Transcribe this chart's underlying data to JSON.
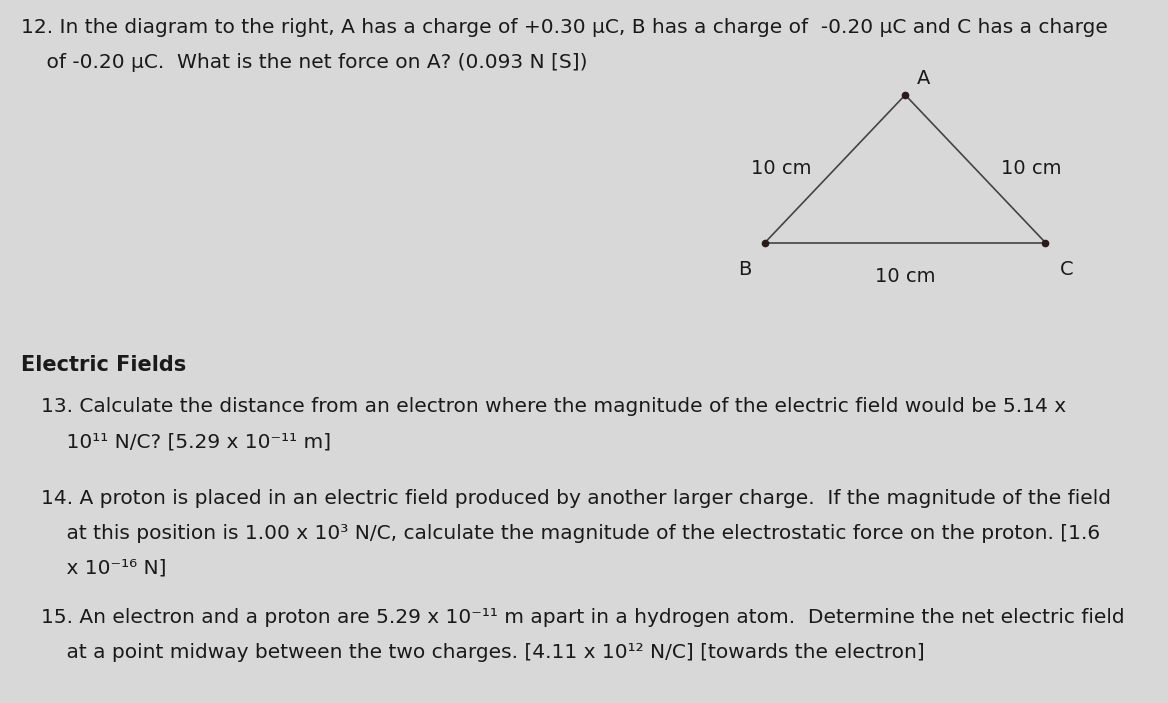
{
  "background_color": "#d8d8d8",
  "title_q12_line1": "12. In the diagram to the right, A has a charge of +0.30 μC, B has a charge of  -0.20 μC and C has a charge",
  "title_q12_line2": "    of -0.20 μC.  What is the net force on A? (0.093 N [S])",
  "triangle": {
    "A": [
      0.775,
      0.865
    ],
    "B": [
      0.655,
      0.655
    ],
    "C": [
      0.895,
      0.655
    ],
    "label_A": "A",
    "label_B": "B",
    "label_C": "C",
    "side_label_left": "10 cm",
    "side_label_right": "10 cm",
    "side_label_bottom": "10 cm"
  },
  "section_electric_fields": "Electric Fields",
  "text_color": "#1a1a1a",
  "dot_color": "#2a1a1a",
  "line_color": "#444444",
  "font_size_body": 14.5,
  "font_size_section": 15.0,
  "font_size_label": 14.0,
  "q13_line1": "13. Calculate the distance from an electron where the magnitude of the electric field would be 5.14 x",
  "q13_line2": "    10¹¹ N/C? [5.29 x 10⁻¹¹ m]",
  "q14_line1": "14. A proton is placed in an electric field produced by another larger charge.  If the magnitude of the field",
  "q14_line2": "    at this position is 1.00 x 10³ N/C, calculate the magnitude of the electrostatic force on the proton. [1.6",
  "q14_line3": "    x 10⁻¹⁶ N]",
  "q15_line1": "15. An electron and a proton are 5.29 x 10⁻¹¹ m apart in a hydrogen atom.  Determine the net electric field",
  "q15_line2": "    at a point midway between the two charges. [4.11 x 10¹² N/C] [towards the electron]"
}
